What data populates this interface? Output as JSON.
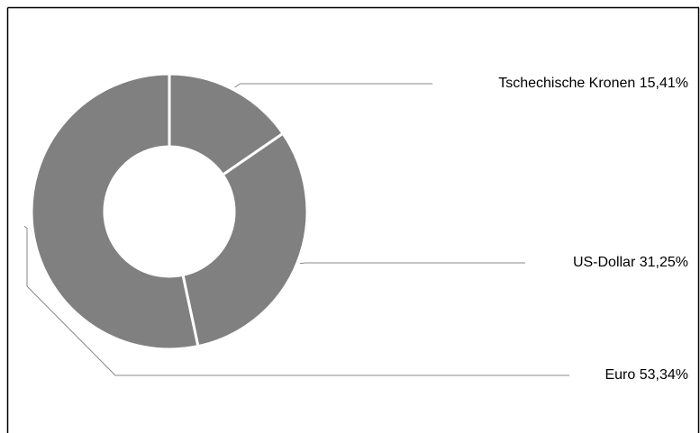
{
  "chart_data": {
    "type": "donut",
    "categories": [
      "Tschechische Kronen",
      "US-Dollar",
      "Euro"
    ],
    "values": [
      15.41,
      31.25,
      53.34
    ],
    "value_labels": [
      "15,41%",
      "31,25%",
      "53,34%"
    ],
    "color": "#808080"
  }
}
